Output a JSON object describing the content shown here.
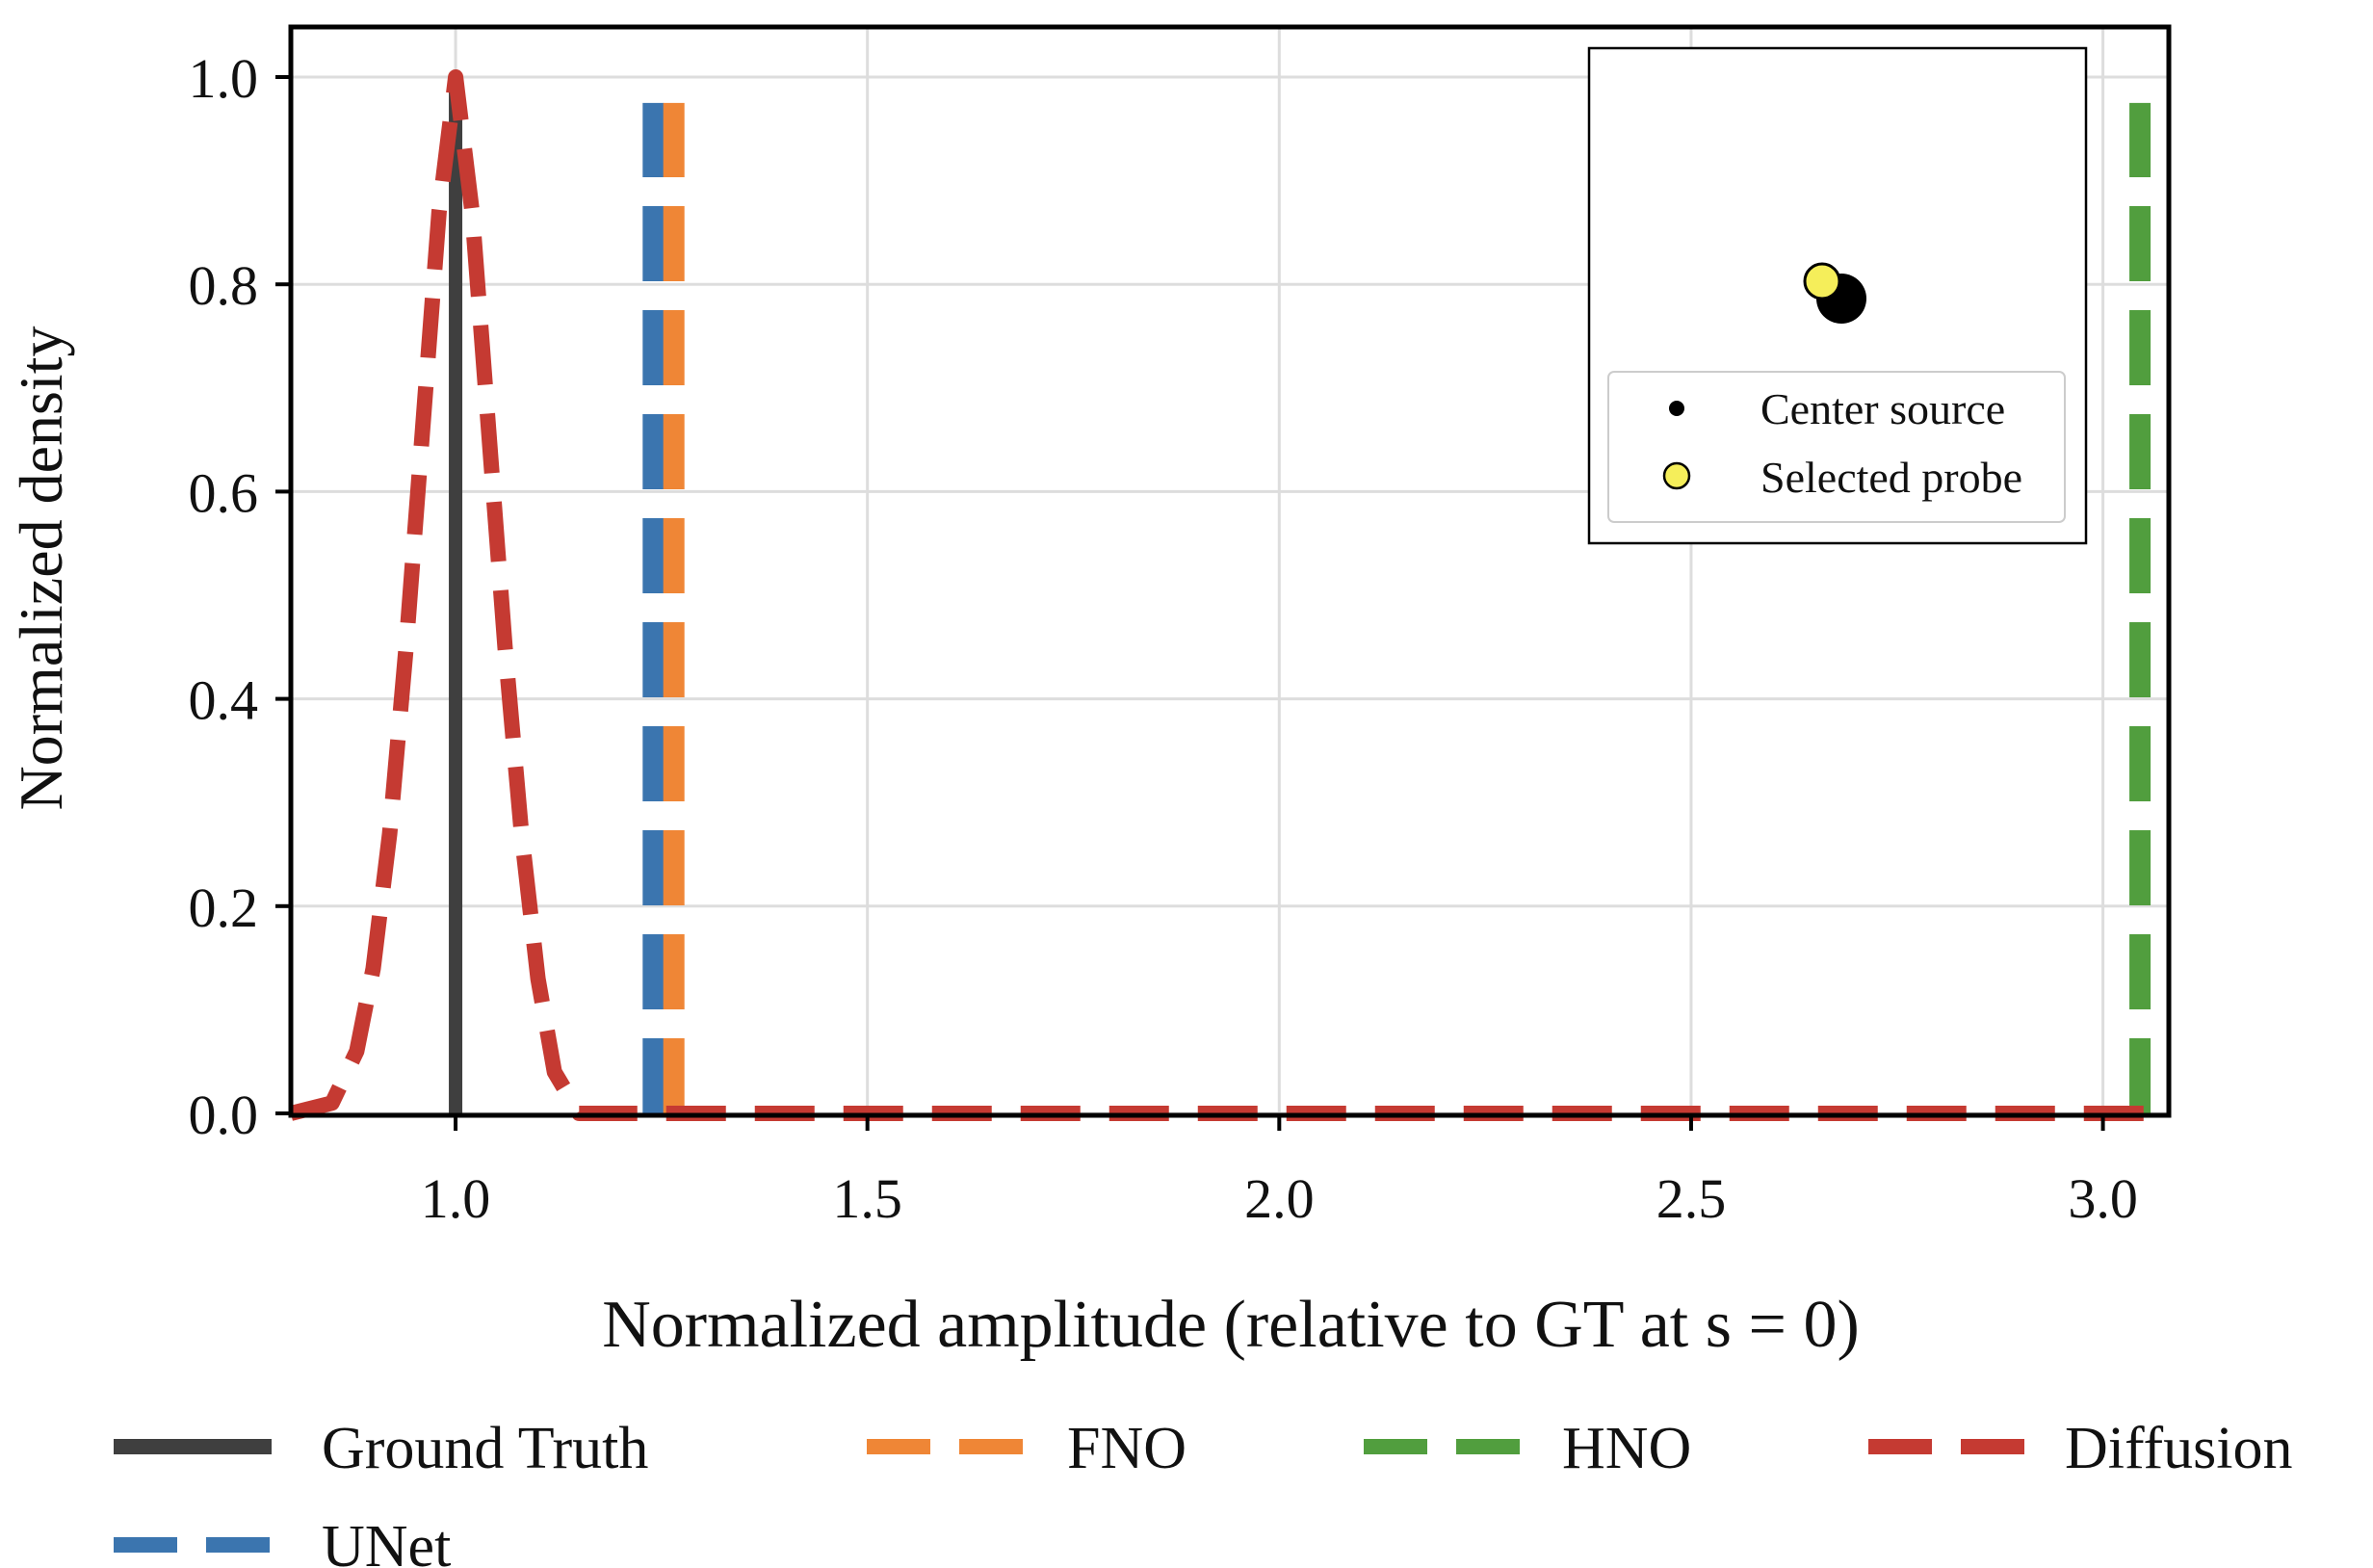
{
  "chart_data": {
    "type": "line",
    "title": "",
    "xlabel": "Normalized amplitude (relative to GT at s = 0)",
    "ylabel": "Normalized density",
    "xlim": [
      0.8,
      3.08
    ],
    "ylim": [
      0.0,
      1.0
    ],
    "grid": true,
    "x_ticks": [
      1.0,
      1.5,
      2.0,
      2.5,
      3.0
    ],
    "x_tick_labels": [
      "1.0",
      "1.5",
      "2.0",
      "2.5",
      "3.0"
    ],
    "y_ticks": [
      0.0,
      0.2,
      0.4,
      0.6,
      0.8,
      1.0
    ],
    "y_tick_labels": [
      "0.0",
      "0.2",
      "0.4",
      "0.6",
      "0.8",
      "1.0"
    ],
    "series": [
      {
        "name": "Ground Truth",
        "kind": "vline",
        "x": 1.0,
        "y_top": 1.0,
        "color": "#3f3f3f",
        "style": "solid"
      },
      {
        "name": "UNet",
        "kind": "vline",
        "x": 1.24,
        "y_top": 0.975,
        "color": "#3b75af",
        "style": "dashed"
      },
      {
        "name": "FNO",
        "kind": "vline",
        "x": 1.265,
        "y_top": 0.975,
        "color": "#ef8636",
        "style": "dashed"
      },
      {
        "name": "HNO",
        "kind": "vline",
        "x": 3.045,
        "y_top": 0.975,
        "color": "#519e3e",
        "style": "dashed"
      },
      {
        "name": "Diffusion",
        "kind": "density",
        "color": "#c53a32",
        "style": "dashed",
        "x": [
          0.8,
          0.85,
          0.88,
          0.9,
          0.92,
          0.94,
          0.96,
          0.98,
          1.0,
          1.02,
          1.04,
          1.06,
          1.08,
          1.1,
          1.12,
          1.15,
          1.2,
          1.5,
          2.0,
          2.5,
          3.0,
          3.07
        ],
        "y": [
          0.0,
          0.01,
          0.06,
          0.14,
          0.27,
          0.45,
          0.66,
          0.87,
          1.0,
          0.87,
          0.66,
          0.45,
          0.27,
          0.13,
          0.04,
          0.0,
          0.0,
          0.0,
          0.0,
          0.0,
          0.0,
          0.0
        ]
      }
    ],
    "legend": {
      "placement": "bottom",
      "entries": [
        "Ground Truth",
        "FNO",
        "HNO",
        "Diffusion",
        "UNet"
      ]
    },
    "inset": {
      "placement": "top-right",
      "markers": [
        {
          "name": "Center source",
          "color": "#000000"
        },
        {
          "name": "Selected probe",
          "color": "#f5ee5a"
        }
      ],
      "legend_labels": [
        "Center source",
        "Selected probe"
      ]
    }
  }
}
